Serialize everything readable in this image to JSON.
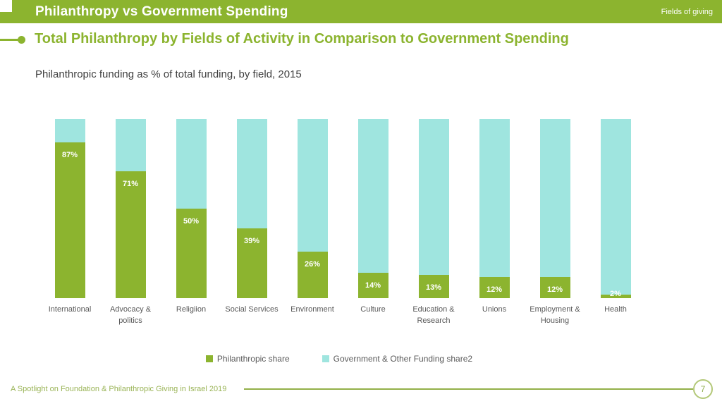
{
  "header": {
    "title": "Philanthropy vs Government Spending",
    "tag": "Fields of giving"
  },
  "slide": {
    "title": "Total Philanthropy by Fields of Activity in Comparison to Government Spending",
    "subtitle": "Philanthropic funding as % of total funding, by field, 2015"
  },
  "colors": {
    "accent_green": "#8CB42F",
    "accent_cyan": "#9FE5DF",
    "text_gray": "#595959",
    "footer_green": "#9AB457"
  },
  "chart_data": {
    "type": "bar",
    "stacked": true,
    "title": "Philanthropic funding as % of total funding, by field, 2015",
    "xlabel": "",
    "ylabel": "",
    "ylim": [
      0,
      100
    ],
    "grid": false,
    "legend_position": "bottom",
    "categories": [
      "International",
      "Advocacy & politics",
      "Religiion",
      "Social Services",
      "Environment",
      "Culture",
      "Education & Research",
      "Unions",
      "Employment & Housing",
      "Health"
    ],
    "series": [
      {
        "name": "Philanthropic share",
        "color": "#8CB42F",
        "values": [
          87,
          71,
          50,
          39,
          26,
          14,
          13,
          12,
          12,
          2
        ]
      },
      {
        "name": "Government & Other Funding share2",
        "color": "#9FE5DF",
        "values": [
          13,
          29,
          50,
          61,
          74,
          86,
          87,
          88,
          88,
          98
        ]
      }
    ],
    "value_labels": [
      "87%",
      "71%",
      "50%",
      "39%",
      "26%",
      "14%",
      "13%",
      "12%",
      "12%",
      "2%"
    ]
  },
  "footer": {
    "text": "A Spotlight on Foundation & Philanthropic Giving in Israel 2019",
    "page_number": "7"
  }
}
